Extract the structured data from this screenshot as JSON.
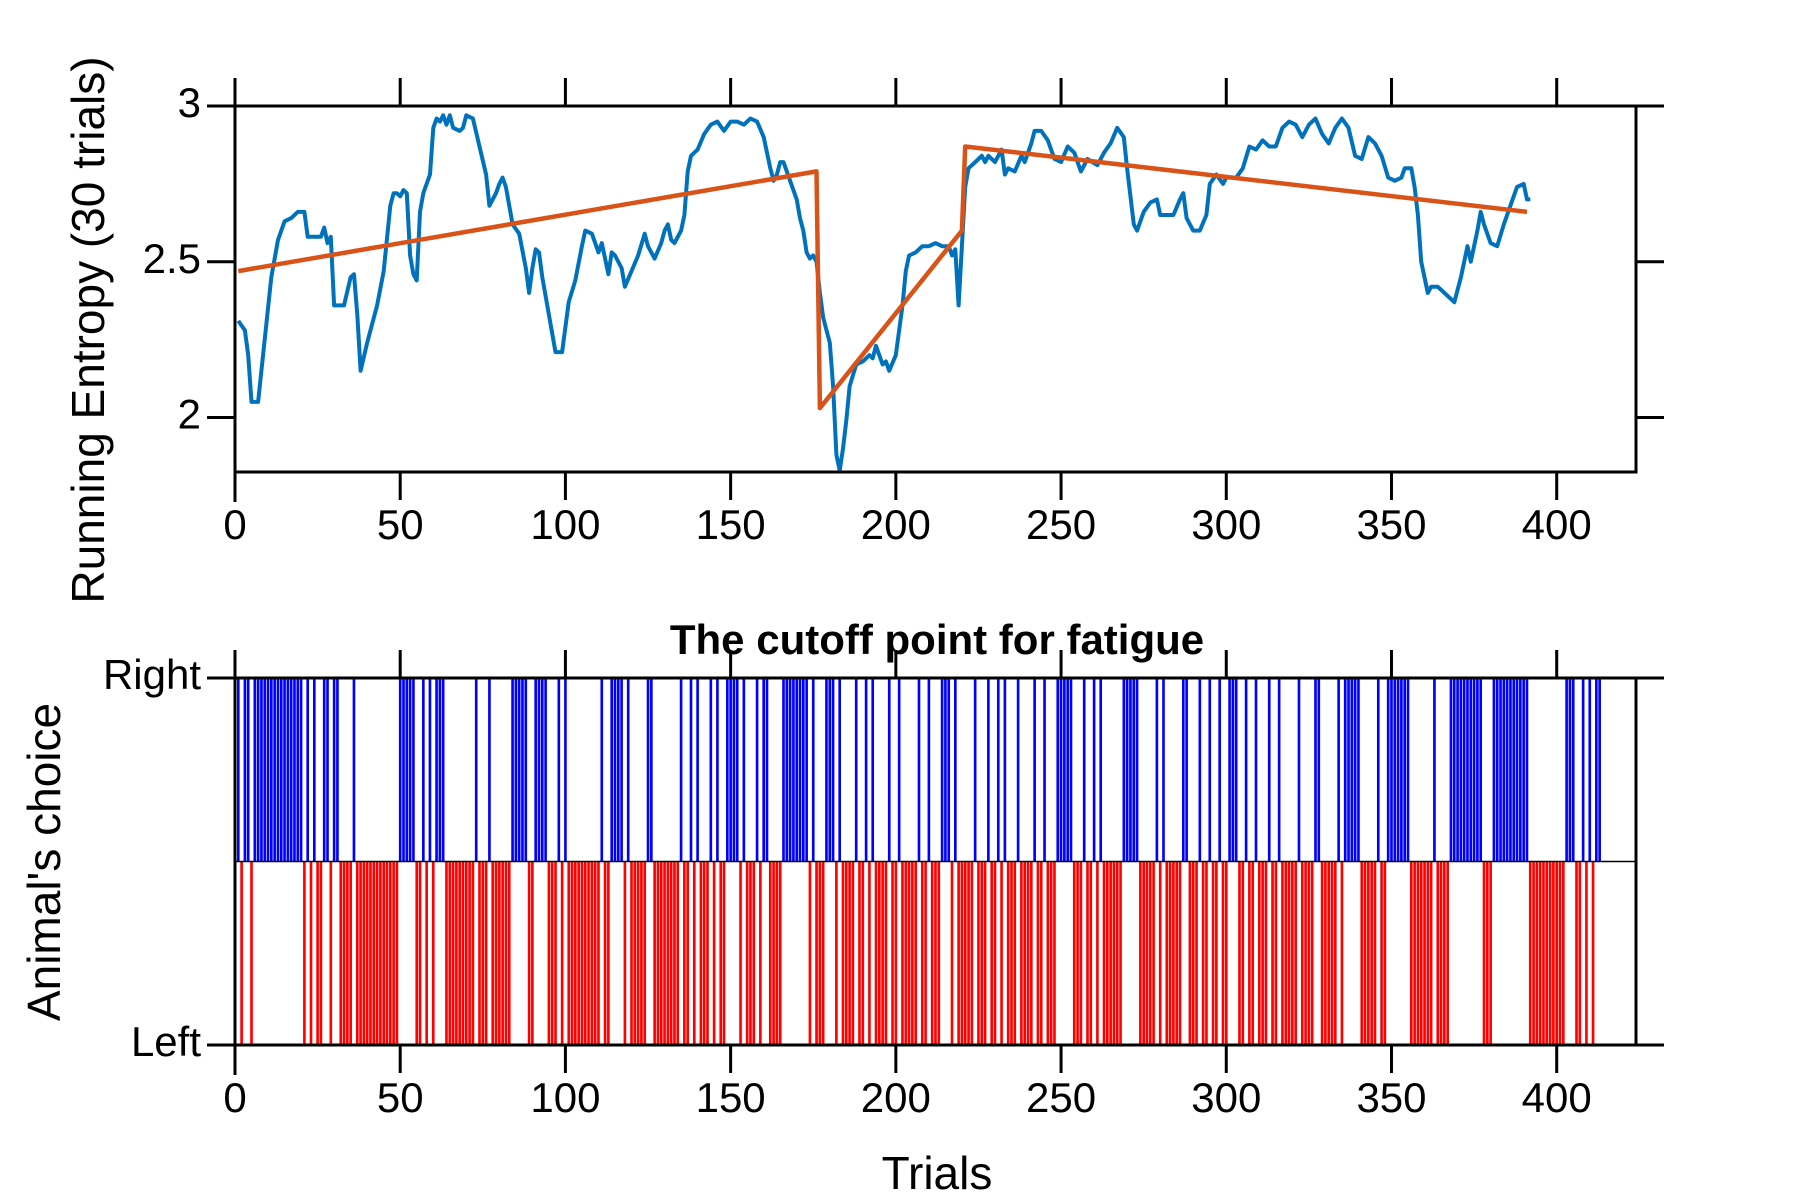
{
  "chart_data": [
    {
      "type": "line",
      "ylabel": "Running Entropy (30 trials)",
      "xlim": [
        0,
        424
      ],
      "xticks": [
        0,
        50,
        100,
        150,
        200,
        250,
        300,
        350,
        400
      ],
      "ylim": [
        1.825,
        3
      ],
      "yticks": [
        2,
        2.5,
        3
      ],
      "series": [
        {
          "color": "#0072bd",
          "x": [
            1,
            3,
            4,
            5,
            7,
            9,
            11,
            13,
            15,
            17,
            19,
            21,
            22,
            26,
            27,
            28,
            29,
            30,
            33,
            35,
            36,
            37,
            38,
            40,
            43,
            45,
            47,
            48,
            49,
            50,
            51,
            52,
            53,
            54,
            55,
            56,
            57,
            59,
            60,
            61,
            62,
            63,
            64,
            65,
            66,
            68,
            69,
            70,
            72,
            74,
            76,
            77,
            79,
            80,
            81,
            82,
            84,
            86,
            88,
            89,
            90,
            91,
            92,
            93,
            95,
            97,
            99,
            101,
            103,
            105,
            106,
            108,
            110,
            111,
            112,
            113,
            114,
            115,
            117,
            118,
            120,
            122,
            124,
            125,
            127,
            129,
            130,
            131,
            132,
            133,
            135,
            136,
            137,
            138,
            140,
            142,
            144,
            146,
            148,
            150,
            152,
            154,
            156,
            158,
            160,
            162,
            163,
            164,
            165,
            166,
            168,
            170,
            171,
            172,
            173,
            174,
            175,
            176,
            177,
            178,
            180,
            181,
            182,
            183,
            184,
            185,
            186,
            188,
            190,
            192,
            193,
            194,
            195,
            196,
            197,
            198,
            200,
            202,
            203,
            204,
            206,
            208,
            210,
            212,
            214,
            216,
            217,
            218,
            219,
            220,
            221,
            222,
            224,
            226,
            227,
            228,
            230,
            232,
            233,
            234,
            236,
            238,
            239,
            241,
            242,
            244,
            246,
            248,
            250,
            252,
            254,
            256,
            258,
            261,
            263,
            265,
            267,
            269,
            270,
            272,
            273,
            275,
            277,
            279,
            280,
            282,
            284,
            286,
            287,
            288,
            290,
            292,
            294,
            295,
            297,
            299,
            300,
            303,
            305,
            307,
            309,
            311,
            313,
            315,
            317,
            319,
            321,
            323,
            325,
            327,
            329,
            331,
            333,
            335,
            337,
            339,
            341,
            343,
            345,
            347,
            349,
            351,
            353,
            354,
            356,
            357,
            358,
            359,
            360,
            361,
            362,
            364,
            366,
            368,
            369,
            371,
            373,
            374,
            376,
            377,
            378,
            380,
            382,
            384,
            386,
            388,
            390,
            391,
            392
          ],
          "values": [
            2.31,
            2.28,
            2.2,
            2.05,
            2.05,
            2.25,
            2.45,
            2.57,
            2.63,
            2.64,
            2.66,
            2.66,
            2.58,
            2.58,
            2.61,
            2.56,
            2.58,
            2.36,
            2.36,
            2.45,
            2.46,
            2.33,
            2.15,
            2.24,
            2.36,
            2.47,
            2.68,
            2.72,
            2.72,
            2.71,
            2.73,
            2.72,
            2.52,
            2.46,
            2.44,
            2.66,
            2.72,
            2.78,
            2.93,
            2.96,
            2.95,
            2.97,
            2.94,
            2.97,
            2.93,
            2.92,
            2.93,
            2.97,
            2.96,
            2.87,
            2.78,
            2.68,
            2.72,
            2.75,
            2.77,
            2.74,
            2.62,
            2.59,
            2.48,
            2.4,
            2.48,
            2.54,
            2.53,
            2.45,
            2.33,
            2.21,
            2.21,
            2.37,
            2.44,
            2.55,
            2.6,
            2.59,
            2.53,
            2.56,
            2.51,
            2.46,
            2.53,
            2.52,
            2.48,
            2.42,
            2.47,
            2.52,
            2.59,
            2.55,
            2.51,
            2.56,
            2.6,
            2.62,
            2.57,
            2.56,
            2.6,
            2.65,
            2.79,
            2.84,
            2.86,
            2.91,
            2.94,
            2.95,
            2.92,
            2.95,
            2.95,
            2.94,
            2.96,
            2.95,
            2.9,
            2.8,
            2.76,
            2.78,
            2.82,
            2.82,
            2.76,
            2.7,
            2.64,
            2.6,
            2.53,
            2.51,
            2.52,
            2.5,
            2.4,
            2.32,
            2.24,
            2.1,
            1.88,
            1.83,
            1.9,
            1.99,
            2.1,
            2.17,
            2.18,
            2.2,
            2.19,
            2.23,
            2.2,
            2.17,
            2.18,
            2.15,
            2.2,
            2.36,
            2.47,
            2.52,
            2.53,
            2.55,
            2.55,
            2.56,
            2.55,
            2.55,
            2.52,
            2.54,
            2.36,
            2.55,
            2.74,
            2.8,
            2.82,
            2.84,
            2.82,
            2.84,
            2.82,
            2.86,
            2.78,
            2.8,
            2.79,
            2.84,
            2.82,
            2.88,
            2.92,
            2.92,
            2.89,
            2.83,
            2.82,
            2.87,
            2.85,
            2.79,
            2.83,
            2.81,
            2.85,
            2.88,
            2.93,
            2.9,
            2.8,
            2.62,
            2.6,
            2.66,
            2.69,
            2.7,
            2.65,
            2.65,
            2.65,
            2.7,
            2.72,
            2.64,
            2.6,
            2.6,
            2.65,
            2.75,
            2.78,
            2.75,
            2.77,
            2.77,
            2.8,
            2.87,
            2.86,
            2.89,
            2.87,
            2.87,
            2.93,
            2.95,
            2.94,
            2.9,
            2.94,
            2.96,
            2.91,
            2.88,
            2.93,
            2.96,
            2.93,
            2.84,
            2.83,
            2.9,
            2.88,
            2.84,
            2.77,
            2.76,
            2.77,
            2.8,
            2.8,
            2.74,
            2.65,
            2.5,
            2.45,
            2.4,
            2.42,
            2.42,
            2.4,
            2.38,
            2.37,
            2.45,
            2.55,
            2.5,
            2.6,
            2.66,
            2.62,
            2.56,
            2.55,
            2.62,
            2.68,
            2.74,
            2.75,
            2.7,
            2.7
          ]
        },
        {
          "color": "#d95319",
          "x": [
            1,
            176,
            177,
            220,
            221,
            391
          ],
          "values": [
            2.47,
            2.79,
            2.03,
            2.6,
            2.87,
            2.66
          ]
        }
      ]
    },
    {
      "type": "raster",
      "title": "The cutoff point for fatigue",
      "xlabel": "Trials",
      "ylabel": "Animal's choice",
      "xlim": [
        0,
        424
      ],
      "xticks": [
        0,
        50,
        100,
        150,
        200,
        250,
        300,
        350,
        400
      ],
      "ylim": [
        0,
        1
      ],
      "yticks": [
        {
          "value": 0,
          "label": "Left"
        },
        {
          "value": 1,
          "label": "Right"
        }
      ],
      "series": [
        {
          "color": "#0000ff",
          "y": 1,
          "x": [
            1,
            3,
            4,
            6,
            7,
            8,
            9,
            10,
            11,
            12,
            13,
            14,
            15,
            16,
            17,
            18,
            19,
            20,
            22,
            24,
            27,
            28,
            30,
            31,
            36,
            50,
            51,
            52,
            53,
            54,
            57,
            59,
            61,
            62,
            63,
            73,
            77,
            84,
            85,
            86,
            87,
            88,
            91,
            92,
            93,
            94,
            98,
            100,
            111,
            114,
            115,
            116,
            117,
            119,
            125,
            126,
            135,
            138,
            140,
            144,
            146,
            149,
            150,
            151,
            152,
            154,
            158,
            160,
            161,
            166,
            167,
            168,
            169,
            170,
            171,
            172,
            173,
            175,
            179,
            180,
            181,
            183,
            188,
            191,
            193,
            198,
            201,
            207,
            210,
            214,
            215,
            216,
            218,
            224,
            228,
            231,
            233,
            237,
            242,
            245,
            249,
            250,
            251,
            252,
            253,
            257,
            260,
            262,
            269,
            270,
            271,
            272,
            273,
            279,
            281,
            287,
            288,
            292,
            295,
            298,
            301,
            302,
            303,
            306,
            309,
            313,
            316,
            322,
            327,
            328,
            334,
            336,
            337,
            338,
            339,
            340,
            346,
            349,
            350,
            351,
            352,
            353,
            354,
            355,
            363,
            368,
            369,
            370,
            371,
            372,
            373,
            374,
            375,
            376,
            377,
            381,
            382,
            383,
            384,
            385,
            386,
            387,
            388,
            389,
            390,
            391,
            403,
            404,
            405,
            408,
            410,
            412,
            413
          ]
        },
        {
          "color": "#ff0000",
          "y": 0,
          "x": [
            2,
            5,
            21,
            23,
            25,
            26,
            29,
            32,
            33,
            34,
            35,
            37,
            38,
            39,
            40,
            41,
            42,
            43,
            44,
            45,
            46,
            47,
            48,
            49,
            55,
            56,
            58,
            60,
            64,
            65,
            66,
            67,
            68,
            69,
            70,
            71,
            72,
            74,
            75,
            76,
            78,
            79,
            80,
            81,
            82,
            83,
            89,
            90,
            95,
            96,
            97,
            99,
            101,
            102,
            103,
            104,
            105,
            106,
            107,
            108,
            109,
            110,
            112,
            113,
            118,
            120,
            121,
            122,
            123,
            124,
            127,
            128,
            129,
            130,
            131,
            132,
            133,
            134,
            136,
            137,
            139,
            141,
            142,
            143,
            145,
            147,
            148,
            153,
            155,
            156,
            157,
            159,
            162,
            163,
            164,
            165,
            174,
            176,
            177,
            178,
            182,
            184,
            185,
            186,
            187,
            189,
            190,
            192,
            194,
            195,
            196,
            197,
            199,
            200,
            202,
            203,
            204,
            205,
            206,
            208,
            209,
            211,
            212,
            213,
            217,
            219,
            220,
            221,
            222,
            223,
            225,
            226,
            227,
            229,
            230,
            232,
            234,
            235,
            236,
            238,
            239,
            240,
            241,
            243,
            244,
            246,
            247,
            248,
            254,
            255,
            256,
            258,
            259,
            261,
            263,
            264,
            265,
            266,
            267,
            268,
            274,
            275,
            276,
            277,
            278,
            280,
            282,
            283,
            284,
            285,
            286,
            289,
            290,
            291,
            293,
            294,
            296,
            297,
            299,
            300,
            304,
            305,
            307,
            308,
            310,
            311,
            312,
            314,
            315,
            317,
            318,
            319,
            320,
            321,
            323,
            324,
            325,
            326,
            329,
            330,
            331,
            332,
            333,
            335,
            341,
            342,
            343,
            344,
            345,
            347,
            348,
            356,
            357,
            358,
            359,
            360,
            361,
            362,
            364,
            365,
            366,
            367,
            378,
            379,
            380,
            392,
            393,
            394,
            395,
            396,
            397,
            398,
            399,
            400,
            401,
            402,
            406,
            407,
            409,
            411
          ]
        }
      ]
    }
  ]
}
